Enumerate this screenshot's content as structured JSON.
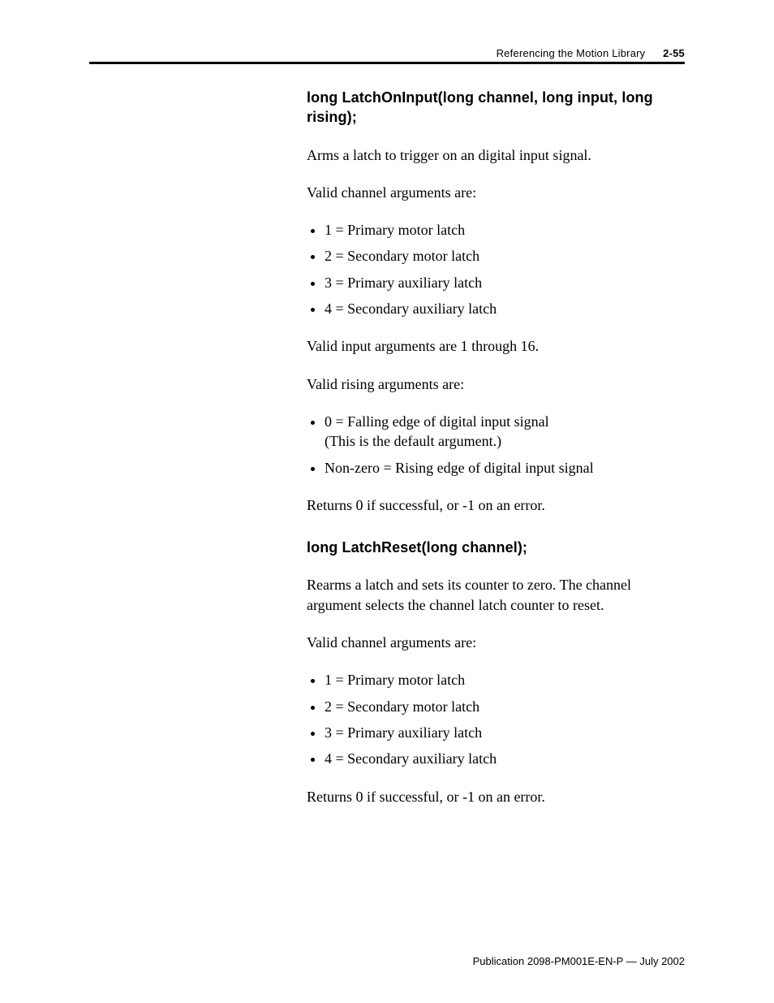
{
  "header": {
    "chapter_title": "Referencing the Motion Library",
    "page_number": "2-55"
  },
  "section1": {
    "heading": "long LatchOnInput(long channel, long input, long rising);",
    "intro": "Arms a latch to trigger on an digital input signal.",
    "channel_args_label": "Valid channel arguments are:",
    "channel_args": [
      "1 = Primary motor latch",
      "2 = Secondary motor latch",
      "3 = Primary auxiliary latch",
      "4 = Secondary auxiliary latch"
    ],
    "input_args_note": "Valid input arguments are 1 through 16.",
    "rising_args_label": "Valid rising arguments are:",
    "rising_args": [
      {
        "line1": "0 = Falling edge of digital input signal",
        "line2": "(This is the default argument.)"
      },
      {
        "line1": "Non-zero = Rising edge of digital input signal"
      }
    ],
    "returns": "Returns 0 if successful, or -1 on an error."
  },
  "section2": {
    "heading": "long LatchReset(long channel);",
    "intro": "Rearms a latch and sets its counter to zero. The channel argument selects the channel latch counter to reset.",
    "channel_args_label": "Valid channel arguments are:",
    "channel_args": [
      "1 = Primary motor latch",
      "2 = Secondary motor latch",
      "3 = Primary auxiliary latch",
      "4 = Secondary auxiliary latch"
    ],
    "returns": "Returns 0 if successful, or -1 on an error."
  },
  "footer": {
    "publication": "Publication 2098-PM001E-EN-P — July 2002"
  }
}
